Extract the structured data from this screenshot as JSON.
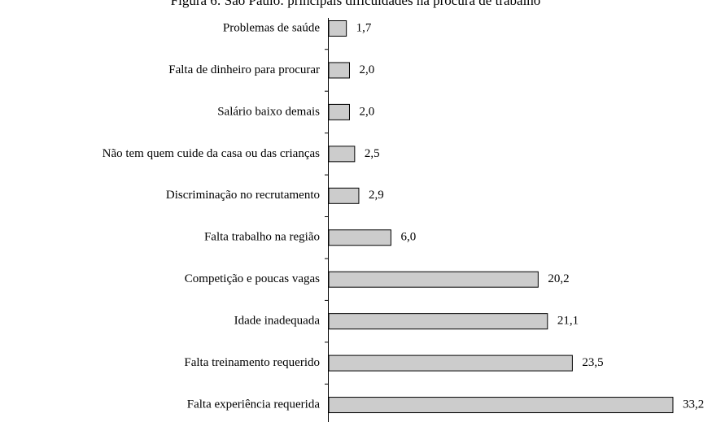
{
  "chart_data": {
    "type": "bar",
    "orientation": "horizontal",
    "title": "Figura 6: São Paulo: principais dificuldades na procura de trabalho",
    "categories": [
      "Problemas de saúde",
      "Falta de dinheiro para procurar",
      "Salário baixo demais",
      "Não tem quem cuide da casa ou das crianças",
      "Discriminação no recrutamento",
      "Falta trabalho na região",
      "Competição e poucas vagas",
      "Idade inadequada",
      "Falta treinamento requerido",
      "Falta experiência requerida"
    ],
    "values": [
      1.7,
      2.0,
      2.0,
      2.5,
      2.9,
      6.0,
      20.2,
      21.1,
      23.5,
      33.2
    ],
    "value_labels": [
      "1,7",
      "2,0",
      "2,0",
      "2,5",
      "2,9",
      "6,0",
      "20,2",
      "21,1",
      "23,5",
      "33,2"
    ],
    "color": "#cccccc"
  }
}
